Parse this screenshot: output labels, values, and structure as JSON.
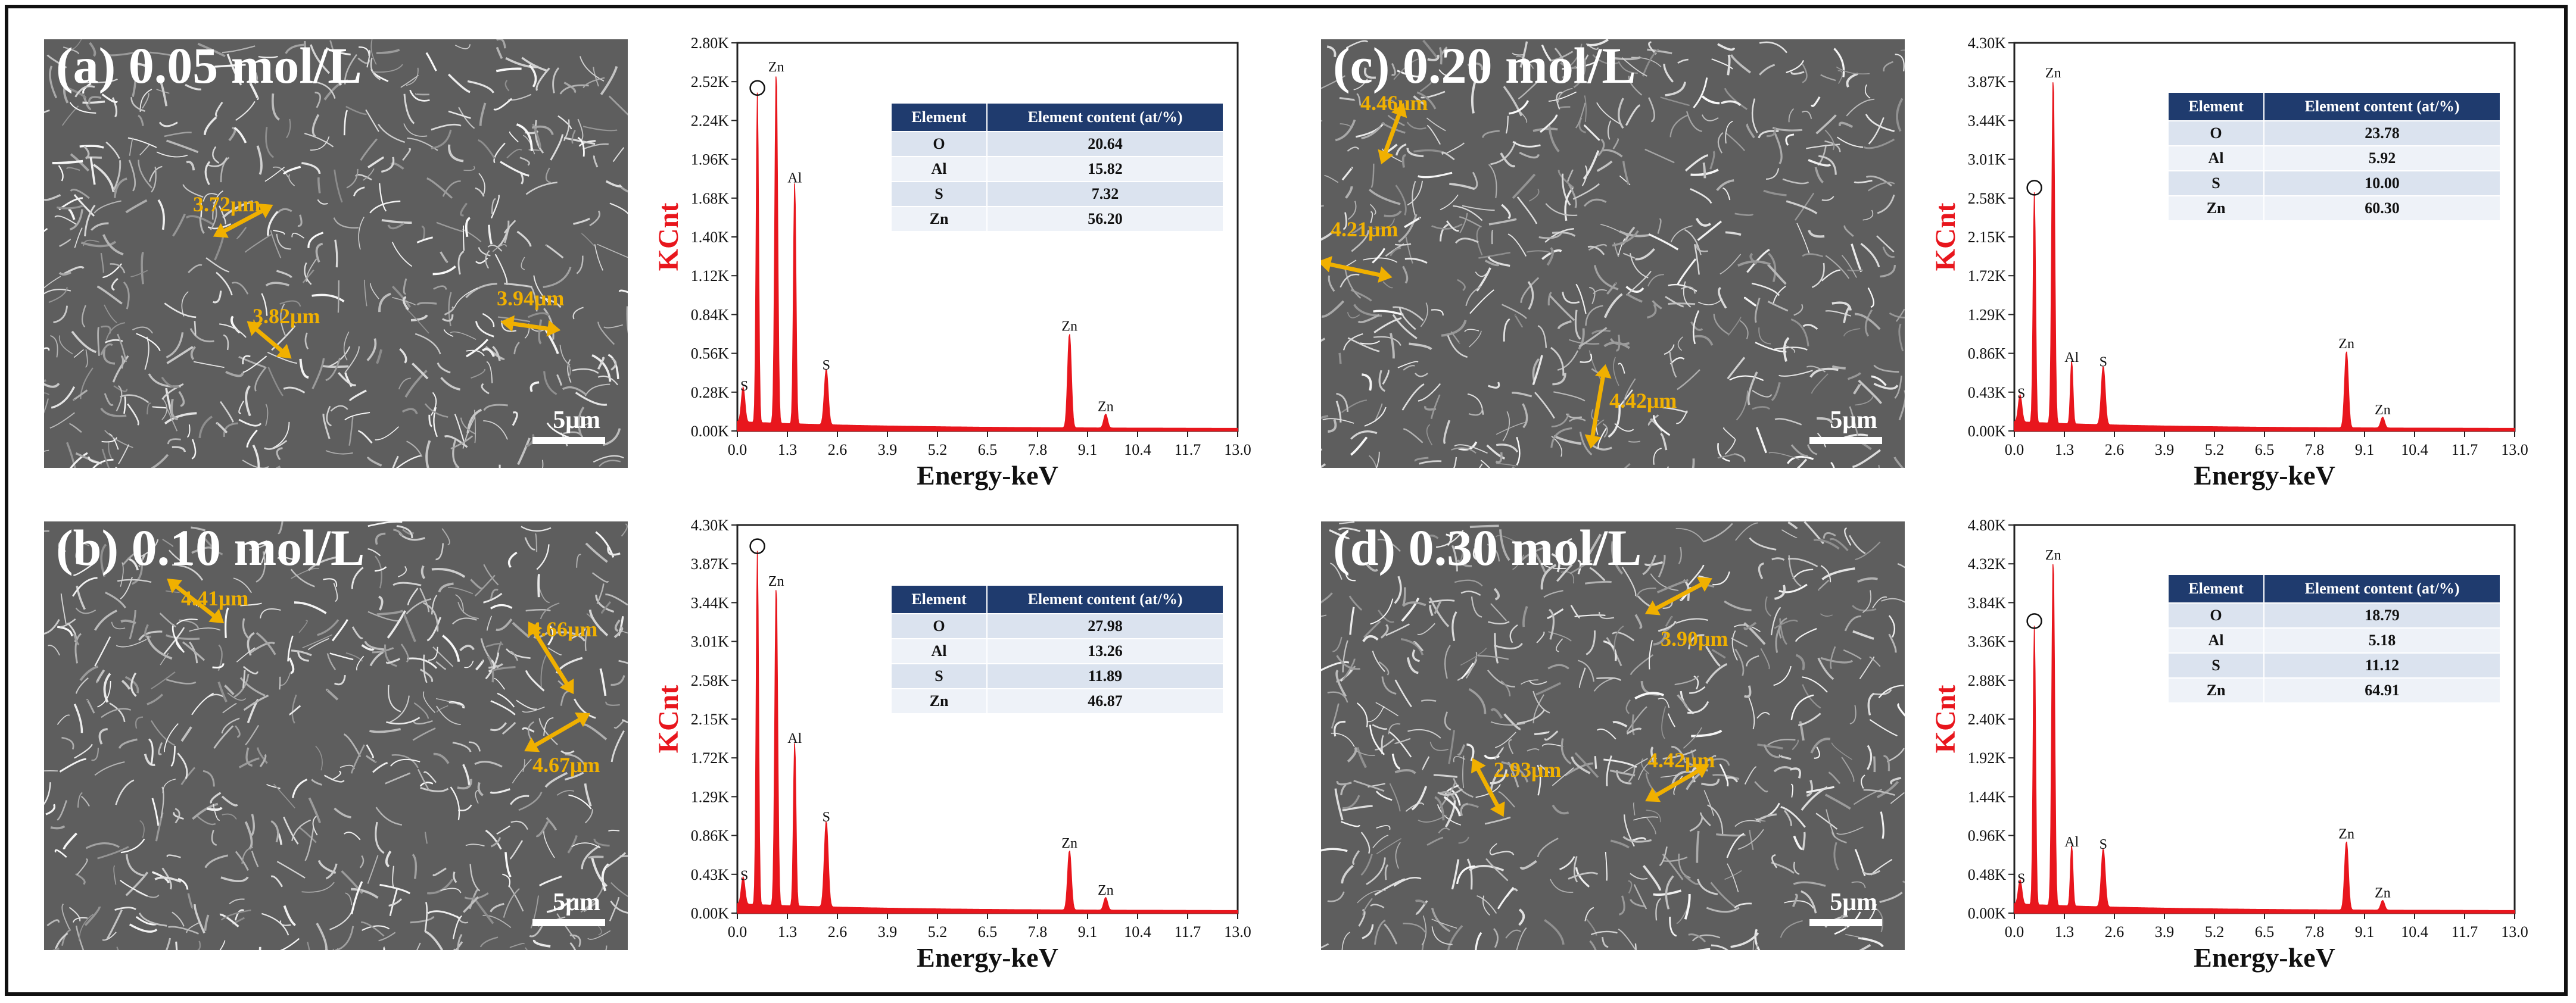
{
  "panels": [
    {
      "id": "a",
      "label": "(a) 0.05 mol/L",
      "scale": "5μm",
      "measurements": [
        "3.72μm",
        "3.82μm",
        "3.94μm"
      ],
      "table": {
        "headers": [
          "Element",
          "Element content (at/%)"
        ],
        "rows": [
          [
            "O",
            "20.64"
          ],
          [
            "Al",
            "15.82"
          ],
          [
            "S",
            "7.32"
          ],
          [
            "Zn",
            "56.20"
          ]
        ]
      }
    },
    {
      "id": "b",
      "label": "(b) 0.10 mol/L",
      "scale": "5μm",
      "measurements": [
        "4.41μm",
        "4.66μm",
        "4.67μm"
      ],
      "table": {
        "headers": [
          "Element",
          "Element content (at/%)"
        ],
        "rows": [
          [
            "O",
            "27.98"
          ],
          [
            "Al",
            "13.26"
          ],
          [
            "S",
            "11.89"
          ],
          [
            "Zn",
            "46.87"
          ]
        ]
      }
    },
    {
      "id": "c",
      "label": "(c) 0.20 mol/L",
      "scale": "5μm",
      "measurements": [
        "4.46μm",
        "4.21μm",
        "4.42μm"
      ],
      "table": {
        "headers": [
          "Element",
          "Element content (at/%)"
        ],
        "rows": [
          [
            "O",
            "23.78"
          ],
          [
            "Al",
            "5.92"
          ],
          [
            "S",
            "10.00"
          ],
          [
            "Zn",
            "60.30"
          ]
        ]
      }
    },
    {
      "id": "d",
      "label": "(d) 0.30 mol/L",
      "scale": "5μm",
      "measurements": [
        "3.90μm",
        "2.93μm",
        "4.42μm"
      ],
      "table": {
        "headers": [
          "Element",
          "Element content (at/%)"
        ],
        "rows": [
          [
            "O",
            "18.79"
          ],
          [
            "Al",
            "5.18"
          ],
          [
            "S",
            "11.12"
          ],
          [
            "Zn",
            "64.91"
          ]
        ]
      }
    }
  ],
  "chart_data": [
    {
      "panel": "a",
      "type": "line",
      "title": "",
      "xlabel": "Energy-keV",
      "ylabel": "KCnt",
      "xlim": [
        0,
        13.0
      ],
      "xticks": [
        "0.0",
        "1.3",
        "2.6",
        "3.9",
        "5.2",
        "6.5",
        "7.8",
        "9.1",
        "10.4",
        "11.7",
        "13.0"
      ],
      "yticks": [
        "0.00K",
        "0.28K",
        "0.56K",
        "0.84K",
        "1.12K",
        "1.40K",
        "1.68K",
        "1.96K",
        "2.24K",
        "2.52K",
        "2.80K"
      ],
      "ylim": [
        0,
        2.8
      ],
      "peaks": [
        {
          "label": "S",
          "energy": 0.15,
          "height": 0.25
        },
        {
          "label": "O",
          "energy": 0.52,
          "height": 2.38
        },
        {
          "label": "Zn",
          "energy": 1.01,
          "height": 2.55
        },
        {
          "label": "Al",
          "energy": 1.49,
          "height": 1.75
        },
        {
          "label": "S",
          "energy": 2.31,
          "height": 0.4
        },
        {
          "label": "Zn",
          "energy": 8.63,
          "height": 0.68
        },
        {
          "label": "Zn",
          "energy": 9.57,
          "height": 0.1
        }
      ]
    },
    {
      "panel": "b",
      "type": "line",
      "title": "",
      "xlabel": "Energy-keV",
      "ylabel": "KCnt",
      "xlim": [
        0,
        13.0
      ],
      "xticks": [
        "0.0",
        "1.3",
        "2.6",
        "3.9",
        "5.2",
        "6.5",
        "7.8",
        "9.1",
        "10.4",
        "11.7",
        "13.0"
      ],
      "yticks": [
        "0.00K",
        "0.43K",
        "0.86K",
        "1.29K",
        "1.72K",
        "2.15K",
        "2.58K",
        "3.01K",
        "3.44K",
        "3.87K",
        "4.30K"
      ],
      "ylim": [
        0,
        4.3
      ],
      "peaks": [
        {
          "label": "S",
          "energy": 0.15,
          "height": 0.3
        },
        {
          "label": "O",
          "energy": 0.52,
          "height": 3.92
        },
        {
          "label": "Zn",
          "energy": 1.01,
          "height": 3.56
        },
        {
          "label": "Al",
          "energy": 1.49,
          "height": 1.82
        },
        {
          "label": "S",
          "energy": 2.31,
          "height": 0.95
        },
        {
          "label": "Zn",
          "energy": 8.63,
          "height": 0.66
        },
        {
          "label": "Zn",
          "energy": 9.57,
          "height": 0.14
        }
      ]
    },
    {
      "panel": "c",
      "type": "line",
      "title": "",
      "xlabel": "Energy-keV",
      "ylabel": "KCnt",
      "xlim": [
        0,
        13.0
      ],
      "xticks": [
        "0.0",
        "1.3",
        "2.6",
        "3.9",
        "5.2",
        "6.5",
        "7.8",
        "9.1",
        "10.4",
        "11.7",
        "13.0"
      ],
      "yticks": [
        "0.00K",
        "0.43K",
        "0.86K",
        "1.29K",
        "1.72K",
        "2.15K",
        "2.58K",
        "3.01K",
        "3.44K",
        "3.87K",
        "4.30K"
      ],
      "ylim": [
        0,
        4.3
      ],
      "peaks": [
        {
          "label": "S",
          "energy": 0.15,
          "height": 0.3
        },
        {
          "label": "O",
          "energy": 0.52,
          "height": 2.55
        },
        {
          "label": "Zn",
          "energy": 1.01,
          "height": 3.85
        },
        {
          "label": "Al",
          "energy": 1.49,
          "height": 0.7
        },
        {
          "label": "S",
          "energy": 2.31,
          "height": 0.65
        },
        {
          "label": "Zn",
          "energy": 8.63,
          "height": 0.85
        },
        {
          "label": "Zn",
          "energy": 9.57,
          "height": 0.12
        }
      ]
    },
    {
      "panel": "d",
      "type": "line",
      "title": "",
      "xlabel": "Energy-keV",
      "ylabel": "KCnt",
      "xlim": [
        0,
        13.0
      ],
      "xticks": [
        "0.0",
        "1.3",
        "2.6",
        "3.9",
        "5.2",
        "6.5",
        "7.8",
        "9.1",
        "10.4",
        "11.7",
        "13.0"
      ],
      "yticks": [
        "0.00K",
        "0.48K",
        "0.96K",
        "1.44K",
        "1.92K",
        "2.40K",
        "2.88K",
        "3.36K",
        "3.84K",
        "4.32K",
        "4.80K"
      ],
      "ylim": [
        0,
        4.8
      ],
      "peaks": [
        {
          "label": "S",
          "energy": 0.15,
          "height": 0.3
        },
        {
          "label": "O",
          "energy": 0.52,
          "height": 3.45
        },
        {
          "label": "Zn",
          "energy": 1.01,
          "height": 4.3
        },
        {
          "label": "Al",
          "energy": 1.49,
          "height": 0.75
        },
        {
          "label": "S",
          "energy": 2.31,
          "height": 0.72
        },
        {
          "label": "Zn",
          "energy": 8.63,
          "height": 0.85
        },
        {
          "label": "Zn",
          "energy": 9.57,
          "height": 0.12
        }
      ]
    }
  ]
}
